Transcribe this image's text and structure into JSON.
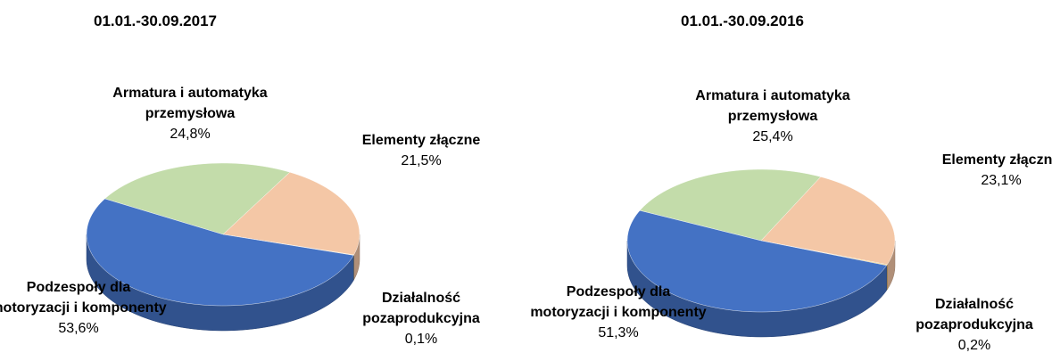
{
  "chart_data": [
    {
      "type": "pie",
      "title": "01.01.-30.09.2017",
      "categories": [
        "Armatura i automatyka przemysłowa",
        "Elementy złączne",
        "Działalność pozaprodukcyjna",
        "Podzespoły dla motoryzacji i komponenty"
      ],
      "values": [
        24.8,
        21.5,
        0.1,
        53.6
      ],
      "value_labels": [
        "24,8%",
        "21,5%",
        "0,1%",
        "53,6%"
      ],
      "colors": [
        "#c3dcaa",
        "#f4c7a6",
        "#e8c05a",
        "#4472c4"
      ]
    },
    {
      "type": "pie",
      "title": "01.01.-30.09.2016",
      "categories": [
        "Armatura i automatyka przemysłowa",
        "Elementy złączne",
        "Działalność pozaprodukcyjna",
        "Podzespoły dla motoryzacji i komponenty"
      ],
      "values": [
        25.4,
        23.1,
        0.2,
        51.3
      ],
      "value_labels": [
        "25,4%",
        "23,1%",
        "0,2%",
        "51,3%"
      ],
      "colors": [
        "#c3dcaa",
        "#f4c7a6",
        "#e8c05a",
        "#4472c4"
      ]
    }
  ]
}
